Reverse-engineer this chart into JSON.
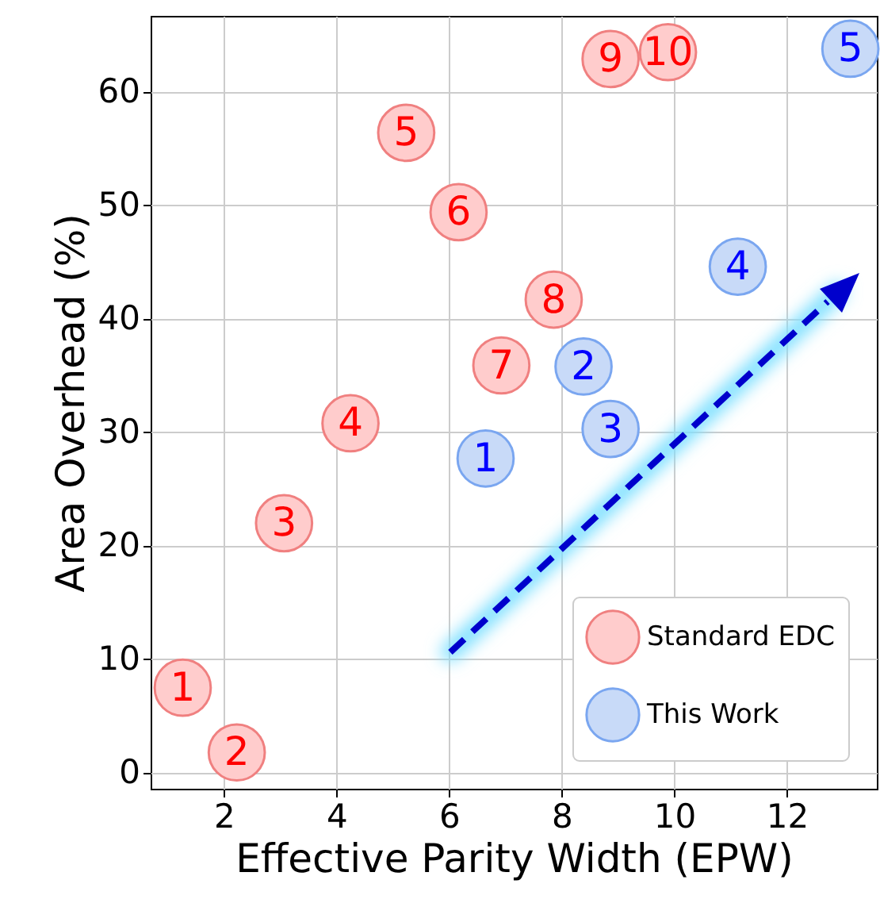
{
  "chart_data": {
    "type": "scatter",
    "xlabel": "Effective Parity Width (EPW)",
    "ylabel": "Area Overhead (%)",
    "xlim": [
      0.7,
      13.6
    ],
    "ylim": [
      -1.4,
      66.7
    ],
    "xticks": [
      2,
      4,
      6,
      8,
      10,
      12
    ],
    "yticks": [
      0,
      10,
      20,
      30,
      40,
      50,
      60
    ],
    "grid": true,
    "legend": "bottom right",
    "marker": "circle",
    "series": [
      {
        "name": "Standard EDC",
        "color": "#ffcccc",
        "x": [
          1.27,
          2.23,
          3.07,
          4.25,
          5.24,
          6.17,
          6.93,
          7.86,
          8.87,
          9.89
        ],
        "values": [
          7.5,
          1.8,
          22,
          30.8,
          56.4,
          49.4,
          35.9,
          41.7,
          62.9,
          63.5
        ]
      },
      {
        "name": "This Work",
        "color": "#c8daf8",
        "x": [
          6.65,
          8.39,
          8.87,
          11.13,
          13.13
        ],
        "values": [
          27.7,
          35.8,
          30.3,
          44.6,
          63.8
        ]
      }
    ],
    "annotations": [
      {
        "text": "1",
        "x": 1.27,
        "y": 7.5
      },
      {
        "text": "2",
        "x": 2.23,
        "y": 1.8
      },
      {
        "text": "3",
        "x": 3.07,
        "y": 22
      },
      {
        "text": "4",
        "x": 4.25,
        "y": 30.8
      },
      {
        "text": "5",
        "x": 5.24,
        "y": 56.4
      },
      {
        "text": "6",
        "x": 6.17,
        "y": 49.4
      },
      {
        "text": "7",
        "x": 6.93,
        "y": 35.9
      },
      {
        "text": "8",
        "x": 7.86,
        "y": 41.7
      },
      {
        "text": "9",
        "x": 8.87,
        "y": 62.9
      },
      {
        "text": "10",
        "x": 9.89,
        "y": 63.5
      },
      {
        "text": "1",
        "x": 6.65,
        "y": 27.7
      },
      {
        "text": "2",
        "x": 8.39,
        "y": 35.8
      },
      {
        "text": "3",
        "x": 8.87,
        "y": 30.3
      },
      {
        "text": "4",
        "x": 11.13,
        "y": 44.6
      },
      {
        "text": "5",
        "x": 13.13,
        "y": 63.8
      }
    ]
  }
}
